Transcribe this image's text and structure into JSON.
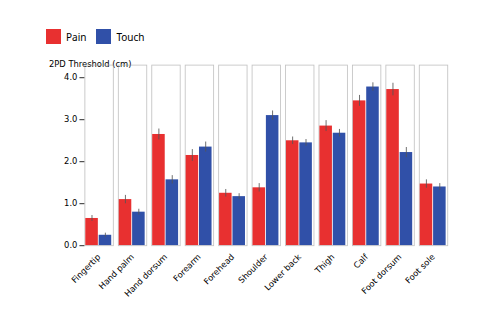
{
  "chart_data": {
    "type": "bar",
    "categories": [
      "Fingertip",
      "Hand palm",
      "Hand dorsum",
      "Forearm",
      "Forehead",
      "Shoulder",
      "Lower back",
      "Thigh",
      "Calf",
      "Foot dorsum",
      "Foot sole"
    ],
    "series": [
      {
        "name": "Pain",
        "color": "#e83030",
        "values": [
          0.65,
          1.1,
          2.65,
          2.15,
          1.25,
          1.38,
          2.5,
          2.85,
          3.45,
          3.72,
          1.47
        ],
        "errors": [
          0.07,
          0.1,
          0.13,
          0.14,
          0.09,
          0.1,
          0.09,
          0.13,
          0.13,
          0.15,
          0.1
        ]
      },
      {
        "name": "Touch",
        "color": "#3050a8",
        "values": [
          0.25,
          0.8,
          1.57,
          2.35,
          1.17,
          3.1,
          2.45,
          2.68,
          3.78,
          2.22,
          1.4
        ],
        "errors": [
          0.05,
          0.07,
          0.1,
          0.12,
          0.07,
          0.11,
          0.08,
          0.09,
          0.1,
          0.12,
          0.08
        ]
      }
    ],
    "ylabel": "2PD Threshold (cm)",
    "ylim": [
      0,
      4.3
    ],
    "yticks": [
      0,
      1,
      2,
      3,
      4
    ],
    "legend": "upper left",
    "grid": false
  }
}
